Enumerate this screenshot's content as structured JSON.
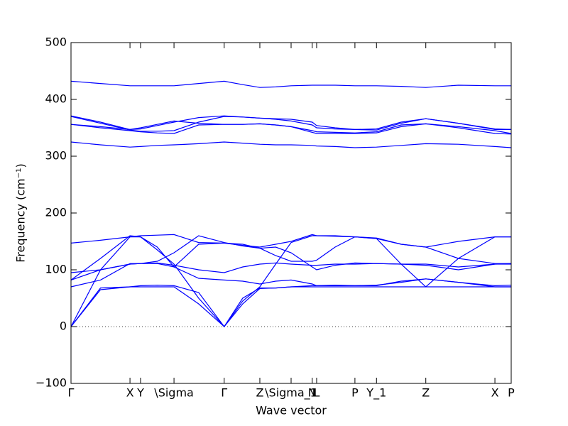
{
  "chart_data": {
    "type": "line",
    "xlabel": "Wave vector",
    "ylabel": "Frequency (cm⁻¹)",
    "xlim": [
      0,
      1
    ],
    "ylim": [
      -100,
      500
    ],
    "yticks": [
      {
        "value": -100,
        "label": "−100"
      },
      0,
      100,
      200,
      300,
      400,
      500
    ],
    "xticks": [
      {
        "value": 0,
        "label": "Γ"
      },
      {
        "value": 0.134,
        "label": "X"
      },
      {
        "value": 0.158,
        "label": "Y"
      },
      {
        "value": 0.234,
        "label": "\\Sigma"
      },
      {
        "value": 0.348,
        "label": "Γ"
      },
      {
        "value": 0.429,
        "label": "Z"
      },
      {
        "value": 0.5,
        "label": "\\Sigma_1"
      },
      {
        "value": 0.548,
        "label": "N"
      },
      {
        "value": 0.558,
        "label": "L"
      },
      {
        "value": 0.645,
        "label": "P"
      },
      {
        "value": 0.694,
        "label": "Y_1"
      },
      {
        "value": 0.806,
        "label": "Z"
      },
      {
        "value": 0.963,
        "label": "X"
      },
      {
        "value": 1,
        "label": "P"
      }
    ],
    "zero_line": true,
    "x": [
      0,
      0.067,
      0.134,
      0.158,
      0.196,
      0.234,
      0.29,
      0.348,
      0.39,
      0.429,
      0.465,
      0.5,
      0.548,
      0.558,
      0.6,
      0.645,
      0.694,
      0.75,
      0.806,
      0.88,
      0.963,
      1
    ],
    "series": [
      {
        "color": "#0000ff",
        "values": [
          432,
          428,
          424,
          424,
          424,
          424,
          428,
          432,
          426,
          421,
          422,
          424,
          425,
          425,
          425,
          424,
          424,
          423,
          421,
          425,
          424,
          424
        ]
      },
      {
        "color": "#0000ff",
        "values": [
          325,
          320,
          316,
          317,
          319,
          320,
          322,
          325,
          323,
          321,
          320,
          320,
          319,
          318,
          317,
          315,
          316,
          319,
          322,
          321,
          317,
          315
        ]
      },
      {
        "color": "#0000ff",
        "values": [
          371,
          360,
          347,
          348,
          354,
          360,
          368,
          371,
          369,
          367,
          365,
          362,
          355,
          350,
          348,
          347,
          346,
          358,
          366,
          358,
          347,
          347
        ]
      },
      {
        "color": "#0000ff",
        "values": [
          356,
          352,
          347,
          350,
          356,
          362,
          358,
          356,
          356,
          357,
          355,
          352,
          345,
          343,
          342,
          341,
          343,
          355,
          357,
          352,
          345,
          340
        ]
      },
      {
        "color": "#0000ff",
        "values": [
          370,
          358,
          346,
          344,
          344,
          345,
          360,
          370,
          369,
          367,
          366,
          365,
          360,
          354,
          350,
          347,
          348,
          360,
          366,
          358,
          348,
          347
        ]
      },
      {
        "color": "#0000ff",
        "values": [
          356,
          350,
          345,
          343,
          341,
          340,
          355,
          356,
          356,
          357,
          355,
          352,
          342,
          340,
          340,
          340,
          341,
          352,
          357,
          350,
          340,
          339
        ]
      },
      {
        "color": "#0000ff",
        "values": [
          147,
          152,
          158,
          160,
          161,
          162,
          148,
          147,
          143,
          140,
          145,
          150,
          162,
          160,
          159,
          158,
          155,
          145,
          140,
          150,
          158,
          158
        ]
      },
      {
        "color": "#0000ff",
        "values": [
          82,
          100,
          110,
          111,
          111,
          105,
          145,
          147,
          145,
          138,
          125,
          115,
          115,
          117,
          140,
          158,
          156,
          145,
          140,
          120,
          111,
          111
        ]
      },
      {
        "color": "#0000ff",
        "values": [
          95,
          100,
          110,
          111,
          112,
          108,
          100,
          95,
          105,
          110,
          112,
          110,
          108,
          108,
          110,
          110,
          111,
          110,
          110,
          105,
          110,
          110
        ]
      },
      {
        "color": "#0000ff",
        "values": [
          70,
          82,
          111,
          111,
          115,
          130,
          160,
          148,
          142,
          138,
          140,
          130,
          105,
          100,
          108,
          112,
          111,
          110,
          108,
          100,
          110,
          111
        ]
      },
      {
        "color": "#0000ff",
        "values": [
          82,
          120,
          160,
          158,
          140,
          105,
          85,
          82,
          80,
          75,
          80,
          82,
          75,
          72,
          73,
          72,
          72,
          80,
          84,
          78,
          70,
          70
        ]
      },
      {
        "color": "#0000ff",
        "values": [
          0,
          100,
          158,
          158,
          135,
          110,
          50,
          0,
          45,
          70,
          110,
          148,
          160,
          160,
          160,
          158,
          155,
          110,
          70,
          120,
          158,
          158
        ]
      },
      {
        "color": "#0000ff",
        "values": [
          0,
          68,
          70,
          70,
          70,
          70,
          40,
          0,
          50,
          68,
          68,
          70,
          70,
          70,
          70,
          70,
          70,
          70,
          70,
          70,
          70,
          70
        ]
      },
      {
        "color": "#0000ff",
        "values": [
          0,
          65,
          70,
          72,
          73,
          72,
          60,
          0,
          40,
          67,
          68,
          70,
          72,
          72,
          72,
          72,
          73,
          78,
          84,
          78,
          72,
          73
        ]
      }
    ]
  }
}
